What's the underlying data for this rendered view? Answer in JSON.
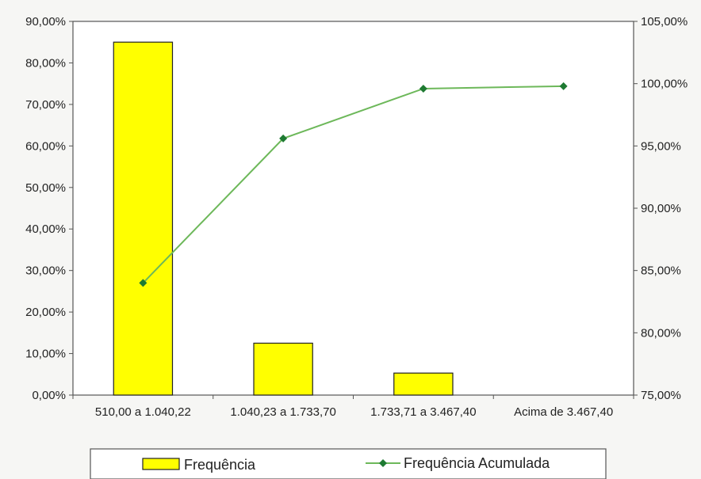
{
  "chart_data": {
    "type": "bar+line",
    "categories": [
      "510,00 a 1.040,22",
      "1.040,23 a 1.733,70",
      "1.733,71 a 3.467,40",
      "Acima de 3.467,40"
    ],
    "series": [
      {
        "name": "Frequência",
        "type": "bar",
        "axis": "left",
        "color": "#ffff00",
        "values": [
          85.0,
          12.5,
          5.3,
          0.0
        ]
      },
      {
        "name": "Frequência Acumulada",
        "type": "line",
        "axis": "right",
        "color": "#6db85a",
        "marker_color": "#1e7a32",
        "values": [
          84.0,
          95.6,
          99.6,
          99.8
        ]
      }
    ],
    "y_left": {
      "min": 0,
      "max": 90,
      "step": 10,
      "tick_labels": [
        "0,00%",
        "10,00%",
        "20,00%",
        "30,00%",
        "40,00%",
        "50,00%",
        "60,00%",
        "70,00%",
        "80,00%",
        "90,00%"
      ]
    },
    "y_right": {
      "min": 75,
      "max": 105,
      "step": 5,
      "tick_labels": [
        "75,00%",
        "80,00%",
        "85,00%",
        "90,00%",
        "95,00%",
        "100,00%",
        "105,00%"
      ]
    },
    "grid": false,
    "legend_position": "bottom"
  }
}
